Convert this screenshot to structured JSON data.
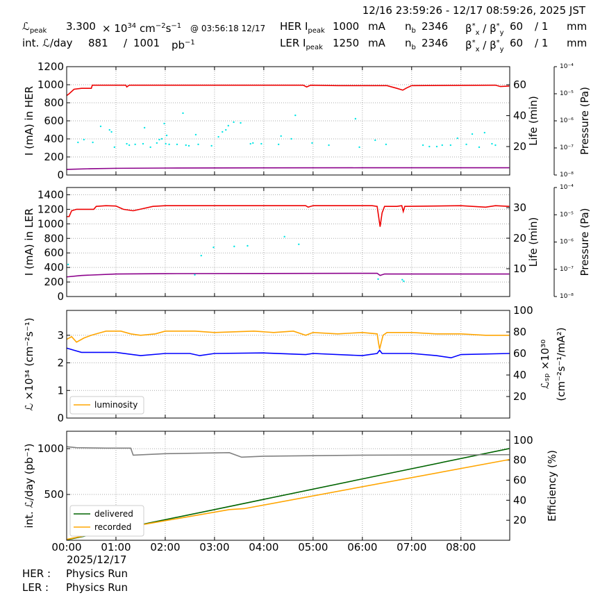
{
  "header": {
    "period": "12/16 23:59:26 - 12/17 08:59:26, 2025 JST",
    "rows": [
      [
        [
          {
            "text": "ℒ"
          },
          {
            "sub": "peak"
          }
        ],
        [
          {
            "text": "3.300"
          }
        ],
        [
          {
            "text": "× 10"
          },
          {
            "sup": "34"
          },
          {
            "text": " cm"
          },
          {
            "sup": "−2"
          },
          {
            "text": "s"
          },
          {
            "sup": "−1"
          }
        ],
        [
          {
            "text": "@ 03:56:18 12/17"
          }
        ],
        [
          {
            "text": "HER I"
          },
          {
            "sub": "peak"
          }
        ],
        [
          {
            "text": "1000"
          }
        ],
        [
          {
            "text": "mA"
          }
        ],
        [
          {
            "text": "n"
          },
          {
            "sub": "b"
          }
        ],
        [
          {
            "text": "2346"
          }
        ],
        [
          {
            "text": "β"
          },
          {
            "sup": "*"
          },
          {
            "sub": "x"
          },
          {
            "text": " / β"
          },
          {
            "sup": "*"
          },
          {
            "sub": "y"
          }
        ],
        [
          {
            "text": "60"
          }
        ],
        [
          {
            "text": "/ 1"
          }
        ],
        [
          {
            "text": "mm"
          }
        ]
      ],
      [
        [
          {
            "text": "int. ℒ/day"
          }
        ],
        [
          {
            "text": "881"
          }
        ],
        [
          {
            "text": "/"
          }
        ],
        [
          {
            "text": "1001"
          }
        ],
        [
          {
            "text": "pb"
          },
          {
            "sup": "−1"
          }
        ],
        [
          {
            "text": "LER I"
          },
          {
            "sub": "peak"
          }
        ],
        [
          {
            "text": "1250"
          }
        ],
        [
          {
            "text": "mA"
          }
        ],
        [
          {
            "text": "n"
          },
          {
            "sub": "b"
          }
        ],
        [
          {
            "text": "2346"
          }
        ],
        [
          {
            "text": "β"
          },
          {
            "sup": "*"
          },
          {
            "sub": "x"
          },
          {
            "text": " / β"
          },
          {
            "sup": "*"
          },
          {
            "sub": "y"
          }
        ],
        [
          {
            "text": "60"
          }
        ],
        [
          {
            "text": "/ 1"
          }
        ],
        [
          {
            "text": "mm"
          }
        ]
      ]
    ]
  },
  "chart_data": [
    {
      "type": "line",
      "ylabel": "I (mA) in HER",
      "y2label": "Life (min)",
      "y3label": "Pressure (Pa)",
      "grid": true,
      "xlim": [
        0,
        8.99
      ],
      "xticks": [
        0,
        1,
        2,
        3,
        4,
        5,
        6,
        7,
        8
      ],
      "ylim": [
        0,
        1200
      ],
      "yticks": [
        0,
        200,
        400,
        600,
        800,
        1000,
        1200
      ],
      "y2lim": [
        1.6,
        71.7
      ],
      "y2ticks": [
        20,
        40,
        60
      ],
      "y3lim": [
        1e-08,
        0.0001
      ],
      "y3log": true,
      "y3ticks": [
        {
          "value": 1e-08,
          "label": "10⁻⁸"
        },
        {
          "value": 1e-07,
          "label": "10⁻⁷"
        },
        {
          "value": 1e-06,
          "label": "10⁻⁶"
        },
        {
          "value": 1e-05,
          "label": "10⁻⁵"
        },
        {
          "value": 0.0001,
          "label": "10⁻⁴"
        }
      ],
      "series": [
        {
          "color": "#ee0000",
          "x": [
            0,
            0.05,
            0.15,
            0.3,
            0.5,
            0.52,
            1.2,
            1.22,
            1.27,
            2.5,
            4.8,
            4.87,
            4.95,
            5.5,
            6.5,
            6.7,
            6.82,
            6.9,
            7.0,
            8.7,
            8.8,
            8.98
          ],
          "values": [
            880,
            900,
            950,
            960,
            960,
            995,
            995,
            975,
            995,
            995,
            995,
            975,
            995,
            990,
            990,
            960,
            940,
            965,
            990,
            995,
            980,
            985
          ]
        },
        {
          "color": "#8b008b",
          "x": [
            0,
            0.5,
            1,
            2,
            4,
            6,
            8.98
          ],
          "values": [
            62,
            70,
            74,
            77,
            79,
            80,
            80
          ]
        },
        {
          "color": "#00e5e5",
          "style": "points",
          "axis": "y2",
          "x": [
            0.23,
            0.35,
            0.53,
            0.69,
            0.87,
            0.91,
            0.97,
            1.22,
            1.27,
            1.39,
            1.55,
            1.58,
            1.7,
            1.83,
            1.88,
            1.93,
            1.98,
            2.01,
            2.03,
            2.08,
            2.24,
            2.36,
            2.42,
            2.48,
            2.62,
            2.67,
            2.94,
            3.08,
            3.16,
            3.23,
            3.28,
            3.39,
            3.53,
            3.73,
            3.78,
            3.95,
            4.3,
            4.35,
            4.56,
            4.64,
            4.98,
            5.32,
            5.86,
            5.94,
            6.26,
            6.48,
            7.23,
            7.36,
            7.51,
            7.62,
            7.79,
            7.93,
            8.11,
            8.23,
            8.37,
            8.48,
            8.63,
            8.7
          ],
          "values": [
            22.7,
            24.5,
            22.7,
            33.1,
            30.8,
            29.5,
            19.6,
            21.8,
            20.9,
            21.4,
            21.8,
            32.2,
            19.6,
            22.3,
            24.5,
            25.0,
            34.9,
            21.8,
            27.2,
            21.4,
            21.4,
            41.6,
            20.9,
            20.5,
            27.7,
            21.4,
            20.5,
            26.3,
            29.5,
            30.8,
            33.5,
            35.8,
            35.3,
            21.8,
            22.3,
            21.8,
            21.4,
            26.8,
            25.0,
            40.2,
            22.3,
            20.9,
            38.0,
            19.6,
            24.1,
            21.4,
            20.9,
            20.0,
            20.0,
            20.9,
            20.9,
            25.4,
            21.4,
            28.1,
            19.6,
            29.0,
            21.8,
            20.9
          ]
        }
      ]
    },
    {
      "type": "line",
      "ylabel": "I (mA) in LER",
      "y2label": "Life (min)",
      "y3label": "Pressure (Pa)",
      "grid": true,
      "xlim": [
        0,
        8.99
      ],
      "xticks": [
        0,
        1,
        2,
        3,
        4,
        5,
        6,
        7,
        8
      ],
      "ylim": [
        0,
        1500
      ],
      "yticks": [
        0,
        200,
        400,
        600,
        800,
        1000,
        1200,
        1400
      ],
      "y2lim": [
        0.9,
        36.6
      ],
      "y2ticks": [
        10,
        20,
        30
      ],
      "y3lim": [
        1e-08,
        0.0001
      ],
      "y3log": true,
      "y3ticks": [
        {
          "value": 1e-08,
          "label": "10⁻⁸"
        },
        {
          "value": 1e-07,
          "label": "10⁻⁷"
        },
        {
          "value": 1e-06,
          "label": "10⁻⁶"
        },
        {
          "value": 1e-05,
          "label": "10⁻⁵"
        },
        {
          "value": 0.0001,
          "label": "10⁻⁴"
        }
      ],
      "series": [
        {
          "color": "#ee0000",
          "x": [
            0,
            0.05,
            0.1,
            0.2,
            0.55,
            0.6,
            0.8,
            1.0,
            1.15,
            1.35,
            1.55,
            1.75,
            2.0,
            4.85,
            4.9,
            5.0,
            6.2,
            6.3,
            6.33,
            6.36,
            6.4,
            6.45,
            6.7,
            6.8,
            6.83,
            6.86,
            8.0,
            8.5,
            8.7,
            8.98
          ],
          "values": [
            1100,
            1100,
            1180,
            1200,
            1200,
            1240,
            1250,
            1245,
            1200,
            1180,
            1210,
            1240,
            1250,
            1250,
            1230,
            1250,
            1250,
            1240,
            1100,
            960,
            1150,
            1240,
            1240,
            1250,
            1170,
            1240,
            1250,
            1230,
            1250,
            1240
          ]
        },
        {
          "color": "#8b008b",
          "x": [
            0,
            0.3,
            1,
            2,
            6.3,
            6.36,
            6.45,
            8.98
          ],
          "values": [
            270,
            290,
            310,
            315,
            320,
            290,
            310,
            310
          ]
        },
        {
          "color": "#00e5e5",
          "style": "points",
          "axis": "y2",
          "x": [
            0.03,
            2.6,
            2.73,
            2.98,
            3.4,
            3.67,
            4.42,
            4.71,
            6.32,
            6.81,
            6.84
          ],
          "values": [
            11.4,
            8.0,
            14.3,
            17.0,
            17.3,
            17.5,
            20.5,
            18.0,
            6.6,
            6.4,
            5.9
          ]
        }
      ]
    },
    {
      "type": "line",
      "ylabel": "ℒ ×10³⁴ (cm⁻²s⁻¹)",
      "y2label": [
        "ℒₛₚ ×10³⁰",
        "(cm⁻²s⁻¹/mA²)"
      ],
      "grid": true,
      "legend": "lower left",
      "xlim": [
        0,
        8.99
      ],
      "xticks": [
        0,
        1,
        2,
        3,
        4,
        5,
        6,
        7,
        8
      ],
      "ylim": [
        0,
        3.9
      ],
      "yticks": [
        0,
        1,
        2,
        3
      ],
      "y2lim": [
        0,
        100
      ],
      "y2ticks": [
        20,
        40,
        60,
        80,
        100
      ],
      "series": [
        {
          "name": "luminosity",
          "color": "#ffa500",
          "x": [
            0,
            0.1,
            0.2,
            0.35,
            0.5,
            0.7,
            0.8,
            1.1,
            1.3,
            1.5,
            1.8,
            2.0,
            2.6,
            3.0,
            3.8,
            4.2,
            4.6,
            4.85,
            5.0,
            5.5,
            6.0,
            6.3,
            6.33,
            6.35,
            6.42,
            6.5,
            7.0,
            7.5,
            8.0,
            8.5,
            8.98
          ],
          "values": [
            2.85,
            2.95,
            2.75,
            2.9,
            3.0,
            3.1,
            3.15,
            3.15,
            3.05,
            3.0,
            3.05,
            3.15,
            3.15,
            3.1,
            3.15,
            3.1,
            3.15,
            3.0,
            3.1,
            3.05,
            3.1,
            3.05,
            2.7,
            2.5,
            3.0,
            3.1,
            3.1,
            3.05,
            3.05,
            3.0,
            3.0
          ]
        },
        {
          "color": "#0000ff",
          "axis": "y2",
          "x": [
            0,
            0.15,
            0.3,
            1.0,
            1.5,
            2.0,
            2.5,
            2.7,
            3.0,
            4.0,
            4.85,
            5.0,
            6.0,
            6.3,
            6.35,
            6.4,
            7.0,
            7.5,
            7.8,
            8.0,
            8.98
          ],
          "values": [
            65,
            63,
            61,
            61,
            58,
            60,
            60,
            58,
            60,
            60.5,
            59,
            60,
            58,
            60,
            63,
            60,
            60,
            58,
            56,
            59,
            60
          ]
        }
      ]
    },
    {
      "type": "line",
      "ylabel": "int. ℒ/day (pb⁻¹)",
      "y2label": "Efficiency (%)",
      "grid": true,
      "legend": "lower left",
      "xlim": [
        0,
        8.99
      ],
      "xticks": [
        {
          "value": 0,
          "label": "00:00"
        },
        {
          "value": 1,
          "label": "01:00"
        },
        {
          "value": 2,
          "label": "02:00"
        },
        {
          "value": 3,
          "label": "03:00"
        },
        {
          "value": 4,
          "label": "04:00"
        },
        {
          "value": 5,
          "label": "05:00"
        },
        {
          "value": 6,
          "label": "06:00"
        },
        {
          "value": 7,
          "label": "07:00"
        },
        {
          "value": 8,
          "label": "08:00"
        }
      ],
      "ylim": [
        0,
        1190
      ],
      "yticks": [
        500,
        1000
      ],
      "y2lim": [
        0,
        108.9
      ],
      "y2ticks": [
        20,
        40,
        60,
        80,
        100
      ],
      "series": [
        {
          "name": "delivered",
          "color": "#006400",
          "x": [
            0,
            3,
            6,
            8.98
          ],
          "values": [
            5,
            335,
            670,
            1001
          ]
        },
        {
          "name": "recorded",
          "color": "#ffa500",
          "x": [
            0,
            1.0,
            3.3,
            3.6,
            8.98
          ],
          "values": [
            10,
            120,
            335,
            345,
            881
          ]
        },
        {
          "color": "#808080",
          "axis": "y2",
          "x": [
            0,
            0.2,
            0.8,
            1.3,
            1.35,
            2.0,
            3.3,
            3.55,
            4.0,
            5.0,
            6.0,
            8.98
          ],
          "values": [
            93.5,
            92.5,
            92,
            92,
            85,
            86.5,
            87.5,
            83,
            84,
            84.5,
            85,
            85.5
          ]
        }
      ]
    }
  ],
  "footer": {
    "date": "2025/12/17",
    "rows": [
      [
        "HER :",
        "Physics Run"
      ],
      [
        "LER :",
        "Physics Run"
      ]
    ]
  }
}
